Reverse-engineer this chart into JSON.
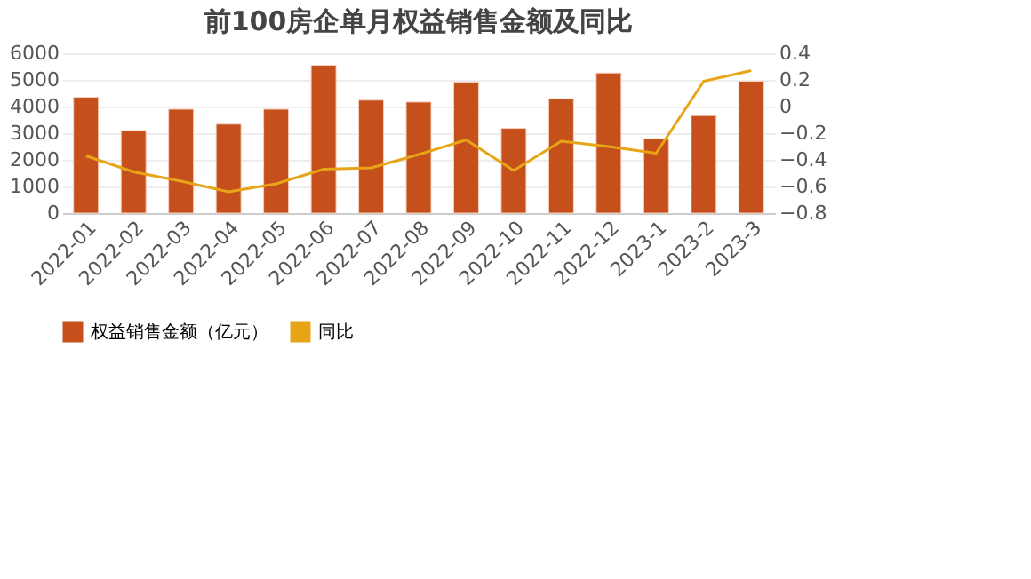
{
  "chart_data": {
    "type": "bar",
    "title": "前100房企单月权益销售金额及同比",
    "categories": [
      "2022-01",
      "2022-02",
      "2022-03",
      "2022-04",
      "2022-05",
      "2022-06",
      "2022-07",
      "2022-08",
      "2022-09",
      "2022-10",
      "2022-11",
      "2022-12",
      "2023-1",
      "2023-2",
      "2023-3"
    ],
    "series": [
      {
        "name": "权益销售金额（亿元）",
        "color": "#c5501b",
        "values": [
          4350,
          3100,
          3900,
          3340,
          3900,
          5550,
          4240,
          4170,
          4920,
          3180,
          4290,
          5260,
          2790,
          3660,
          4950
        ]
      },
      {
        "name": "同比",
        "color": "#e8a417",
        "type": "line",
        "axis": "y2",
        "values": [
          -0.37,
          -0.49,
          -0.56,
          -0.64,
          -0.58,
          -0.47,
          -0.46,
          -0.36,
          -0.25,
          -0.48,
          -0.26,
          -0.3,
          -0.35,
          0.19,
          0.27
        ]
      }
    ],
    "ylim": [
      0,
      6000
    ],
    "yticks": [
      0,
      1000,
      2000,
      3000,
      4000,
      5000,
      6000
    ],
    "y2lim": [
      -0.8,
      0.4
    ],
    "y2ticks": [
      -0.8,
      -0.6,
      -0.4,
      -0.2,
      0,
      0.2,
      0.4
    ],
    "grid": "y",
    "legend": "bottom",
    "marker": "none",
    "line_style": "solid"
  }
}
